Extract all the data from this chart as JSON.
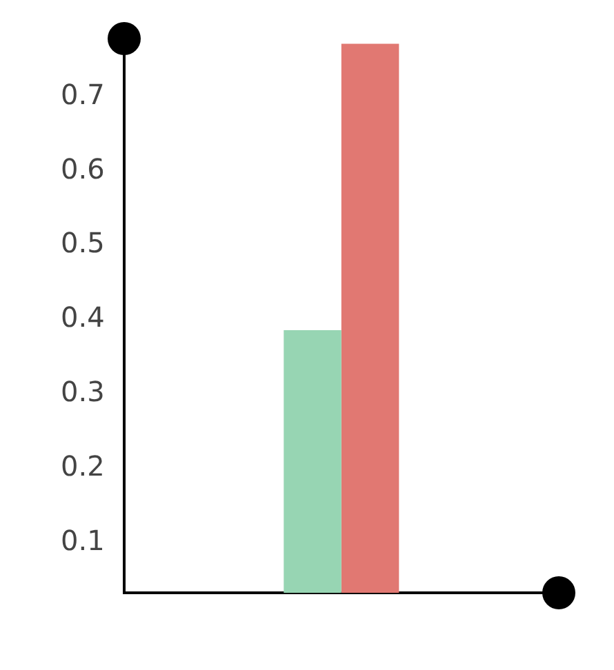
{
  "chart_data": {
    "type": "bar",
    "categories": [
      null
    ],
    "series": [
      {
        "color": "#97d5b3",
        "values": [
          0.386
        ]
      },
      {
        "color": "#e17872",
        "values": [
          0.771
        ]
      }
    ],
    "ylim": [
      0.033,
      0.778
    ],
    "yticks": [
      0.1,
      0.2,
      0.3,
      0.4,
      0.5,
      0.6,
      0.7
    ],
    "grid": false,
    "legend": false
  }
}
